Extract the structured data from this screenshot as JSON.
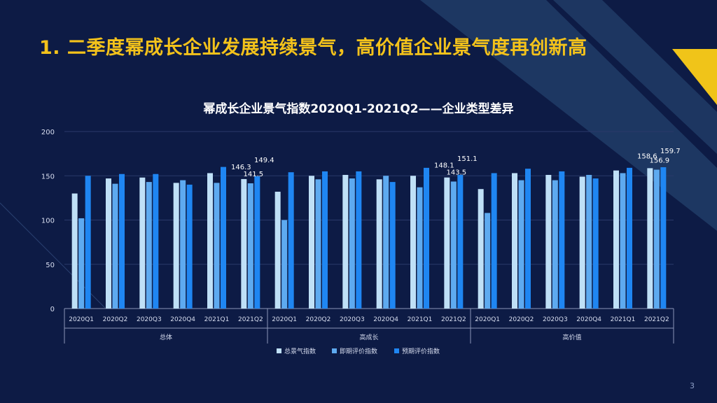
{
  "slide": {
    "heading": "1. 二季度幂成长企业发展持续景气，高价值企业景气度再创新高",
    "page_number": "3"
  },
  "colors": {
    "background": "#0d1b45",
    "heading": "#f3c21b",
    "series": [
      "#bfe0f7",
      "#5eaaf0",
      "#1f86f2"
    ],
    "accent_yellow": "#f0c419",
    "accent_stripe": "#2c4f7a"
  },
  "chart_data": {
    "type": "bar",
    "title": "幂成长企业景气指数2020Q1-2021Q2——企业类型差异",
    "ylim": [
      0,
      200
    ],
    "yticks": [
      "0",
      "50",
      "100",
      "150",
      "200"
    ],
    "grid": true,
    "legend_position": "bottom",
    "groups": [
      {
        "name": "总体",
        "categories": [
          "2020Q1",
          "2020Q2",
          "2020Q3",
          "2020Q4",
          "2021Q1",
          "2021Q2"
        ]
      },
      {
        "name": "高成长",
        "categories": [
          "2020Q1",
          "2020Q2",
          "2020Q3",
          "2020Q4",
          "2021Q1",
          "2021Q2"
        ]
      },
      {
        "name": "高价值",
        "categories": [
          "2020Q1",
          "2020Q2",
          "2020Q3",
          "2020Q4",
          "2021Q1",
          "2021Q2"
        ]
      }
    ],
    "series": [
      {
        "name": "总景气指数",
        "values": [
          130,
          147,
          148,
          142,
          153,
          146.3,
          132,
          150,
          151,
          146,
          150,
          148.1,
          135,
          153,
          151,
          149,
          156,
          158.6
        ]
      },
      {
        "name": "即期评价指数",
        "values": [
          102,
          141,
          143,
          145,
          142,
          141.5,
          100,
          146,
          147,
          150,
          137,
          143.5,
          108,
          145,
          145,
          151,
          153,
          156.9
        ]
      },
      {
        "name": "预期评价指数",
        "values": [
          150,
          152,
          152,
          140,
          160,
          149.4,
          154,
          155,
          155,
          143,
          159,
          151.1,
          153,
          158,
          155,
          147,
          159,
          159.7
        ]
      }
    ],
    "data_labels": [
      {
        "series": 0,
        "index": 5,
        "text": "146.3"
      },
      {
        "series": 1,
        "index": 5,
        "text": "141.5"
      },
      {
        "series": 2,
        "index": 5,
        "text": "149.4"
      },
      {
        "series": 0,
        "index": 11,
        "text": "148.1"
      },
      {
        "series": 1,
        "index": 11,
        "text": "143.5"
      },
      {
        "series": 2,
        "index": 11,
        "text": "151.1"
      },
      {
        "series": 0,
        "index": 17,
        "text": "158.6"
      },
      {
        "series": 1,
        "index": 17,
        "text": "156.9"
      },
      {
        "series": 2,
        "index": 17,
        "text": "159.7"
      }
    ]
  }
}
